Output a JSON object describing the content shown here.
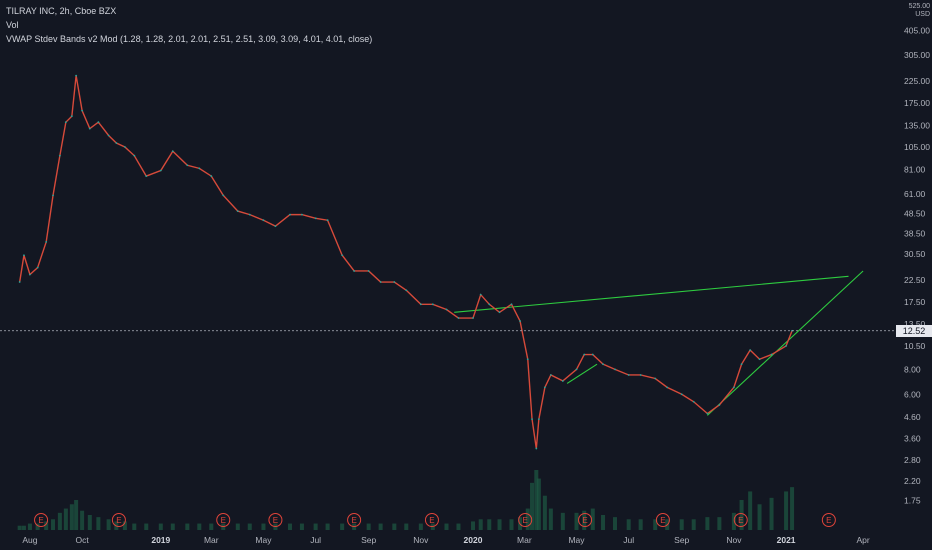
{
  "legend": {
    "symbol_line": "TILRAY INC, 2h, Cboe BZX",
    "vol_line": "Vol",
    "vwap_line": "VWAP Stdev Bands v2 Mod (1.28, 1.28, 2.01, 2.01, 2.51, 2.51, 3.09, 3.09, 4.01, 4.01, close)"
  },
  "price_axis": {
    "currency_top": "525.00",
    "currency_label": "USD",
    "last_price_label": "12.52"
  },
  "colors": {
    "background": "#131722",
    "price_line": "#d64a3a",
    "price_highlight": "#26a69a",
    "trendline": "#2ecc40",
    "earnings": "#e0443a",
    "volume": "#1e5a43",
    "axis_text": "#b2b5be",
    "last_price_line": "#b2b5be"
  },
  "chart_data": {
    "type": "line",
    "scale": "log",
    "title": "TILRAY INC, 2h, Cboe BZX",
    "y_ticks": [
      "405.00",
      "305.00",
      "225.00",
      "175.00",
      "135.00",
      "105.00",
      "81.00",
      "61.00",
      "48.50",
      "38.50",
      "30.50",
      "22.50",
      "17.50",
      "13.50",
      "10.50",
      "8.00",
      "6.00",
      "4.60",
      "3.60",
      "2.80",
      "2.20",
      "1.75"
    ],
    "x_ticks": [
      "Aug",
      "Oct",
      "2019",
      "Mar",
      "May",
      "Jul",
      "Sep",
      "Nov",
      "2020",
      "Mar",
      "May",
      "Jul",
      "Sep",
      "Nov",
      "2021",
      "Apr"
    ],
    "ylim": [
      1.5,
      525
    ],
    "last_price": 12.52,
    "series": [
      {
        "x": [
          "2018-07-20",
          "2018-07-25",
          "2018-08-01",
          "2018-08-10",
          "2018-08-20",
          "2018-08-28",
          "2018-09-05",
          "2018-09-12",
          "2018-09-19",
          "2018-09-24",
          "2018-10-01",
          "2018-10-10",
          "2018-10-20",
          "2018-11-01",
          "2018-11-10",
          "2018-11-20",
          "2018-12-01",
          "2018-12-15",
          "2019-01-01",
          "2019-01-15",
          "2019-02-01",
          "2019-02-15",
          "2019-03-01",
          "2019-03-15",
          "2019-04-01",
          "2019-04-15",
          "2019-05-01",
          "2019-05-15",
          "2019-06-01",
          "2019-06-15",
          "2019-07-01",
          "2019-07-15",
          "2019-08-01",
          "2019-08-15",
          "2019-09-01",
          "2019-09-15",
          "2019-10-01",
          "2019-10-15",
          "2019-11-01",
          "2019-11-15",
          "2019-12-01",
          "2019-12-15",
          "2020-01-01",
          "2020-01-10",
          "2020-01-20",
          "2020-02-01",
          "2020-02-15",
          "2020-02-25",
          "2020-03-05",
          "2020-03-10",
          "2020-03-15",
          "2020-03-18",
          "2020-03-25",
          "2020-04-01",
          "2020-04-15",
          "2020-05-01",
          "2020-05-10",
          "2020-05-20",
          "2020-06-01",
          "2020-06-15",
          "2020-07-01",
          "2020-07-15",
          "2020-08-01",
          "2020-08-15",
          "2020-09-01",
          "2020-09-15",
          "2020-10-01",
          "2020-10-15",
          "2020-11-01",
          "2020-11-10",
          "2020-11-20",
          "2020-12-01",
          "2020-12-15",
          "2021-01-01",
          "2021-01-08"
        ],
        "values": [
          22,
          30,
          24,
          26,
          35,
          60,
          95,
          140,
          150,
          240,
          160,
          130,
          140,
          120,
          110,
          105,
          95,
          75,
          80,
          100,
          85,
          82,
          75,
          60,
          50,
          48,
          45,
          42,
          48,
          48,
          46,
          45,
          30,
          25,
          25,
          22,
          22,
          20,
          17,
          17,
          16,
          14.5,
          14.5,
          19,
          17,
          15.5,
          17,
          14,
          9,
          4.5,
          3.2,
          4.5,
          6.5,
          7.5,
          7,
          8,
          9.5,
          9.5,
          8.5,
          8,
          7.5,
          7.5,
          7.2,
          6.5,
          6,
          5.5,
          4.8,
          5.3,
          6.5,
          8.5,
          10,
          9,
          9.5,
          10.5,
          12.52
        ]
      }
    ],
    "trendlines": [
      {
        "x": [
          "2019-12-10",
          "2021-03-15"
        ],
        "y": [
          15.5,
          23.5
        ]
      },
      {
        "x": [
          "2020-04-20",
          "2020-05-25"
        ],
        "y": [
          6.8,
          8.5
        ]
      },
      {
        "x": [
          "2020-10-01",
          "2021-04-01"
        ],
        "y": [
          4.7,
          25
        ]
      }
    ],
    "earnings_markers": [
      "2018-08-14",
      "2018-11-13",
      "2019-03-15",
      "2019-05-15",
      "2019-08-15",
      "2019-11-14",
      "2020-03-02",
      "2020-05-11",
      "2020-08-10",
      "2020-11-09",
      "2021-02-20"
    ],
    "earnings_label": "E",
    "volume": [
      2,
      2,
      3,
      3,
      4,
      5,
      8,
      10,
      12,
      14,
      9,
      7,
      6,
      5,
      4,
      4,
      3,
      3,
      3,
      3,
      3,
      3,
      3,
      3,
      3,
      3,
      3,
      3,
      3,
      3,
      3,
      3,
      3,
      3,
      3,
      3,
      3,
      3,
      3,
      3,
      3,
      3,
      4,
      5,
      5,
      5,
      5,
      6,
      10,
      22,
      28,
      24,
      16,
      10,
      8,
      8,
      9,
      10,
      7,
      6,
      5,
      5,
      5,
      5,
      5,
      5,
      6,
      6,
      8,
      14,
      18,
      12,
      15,
      18,
      20
    ]
  }
}
